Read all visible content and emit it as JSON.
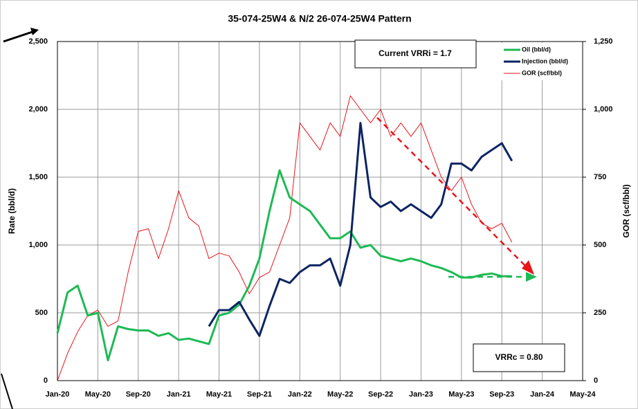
{
  "chart_data": {
    "type": "line",
    "title": "35-074-25W4 & N/2 26-074-25W4 Pattern",
    "y_label": "Rate (bbl/d)",
    "y2_label": "GOR (scf/bbl)",
    "annotations": [
      "Current VRRi = 1.7",
      "VRRc = 0.80"
    ],
    "x": [
      "2020-01",
      "2020-02",
      "2020-03",
      "2020-04",
      "2020-05",
      "2020-06",
      "2020-07",
      "2020-08",
      "2020-09",
      "2020-10",
      "2020-11",
      "2020-12",
      "2021-01",
      "2021-02",
      "2021-03",
      "2021-04",
      "2021-05",
      "2021-06",
      "2021-07",
      "2021-08",
      "2021-09",
      "2021-10",
      "2021-11",
      "2021-12",
      "2022-01",
      "2022-02",
      "2022-03",
      "2022-04",
      "2022-05",
      "2022-06",
      "2022-07",
      "2022-08",
      "2022-09",
      "2022-10",
      "2022-11",
      "2022-12",
      "2023-01",
      "2023-02",
      "2023-03",
      "2023-04",
      "2023-05",
      "2023-06",
      "2023-07",
      "2023-08",
      "2023-09",
      "2023-10"
    ],
    "xlim": [
      "2020-01",
      "2024-05"
    ],
    "xticks": [
      {
        "value": "2020-01",
        "label": "Jan-20"
      },
      {
        "value": "2020-05",
        "label": "May-20"
      },
      {
        "value": "2020-09",
        "label": "Sep-20"
      },
      {
        "value": "2021-01",
        "label": "Jan-21"
      },
      {
        "value": "2021-05",
        "label": "May-21"
      },
      {
        "value": "2021-09",
        "label": "Sep-21"
      },
      {
        "value": "2022-01",
        "label": "Jan-22"
      },
      {
        "value": "2022-05",
        "label": "May-22"
      },
      {
        "value": "2022-09",
        "label": "Sep-22"
      },
      {
        "value": "2023-01",
        "label": "Jan-23"
      },
      {
        "value": "2023-05",
        "label": "May-23"
      },
      {
        "value": "2023-09",
        "label": "Sep-23"
      },
      {
        "value": "2024-01",
        "label": "Jan-24"
      },
      {
        "value": "2024-05",
        "label": "May-24"
      }
    ],
    "ylim": [
      0,
      2500
    ],
    "yticks": [
      0,
      500,
      {
        "value": 1000,
        "label": "1,000"
      },
      {
        "value": 1500,
        "label": "1,500"
      },
      {
        "value": 2000,
        "label": "2,000"
      },
      {
        "value": 2500,
        "label": "2,500"
      }
    ],
    "y2lim": [
      0,
      1250
    ],
    "y2ticks": [
      0,
      250,
      500,
      750,
      {
        "value": 1000,
        "label": "1,000"
      },
      {
        "value": 1250,
        "label": "1,250"
      }
    ],
    "grid": true,
    "legend": "upper right",
    "series": [
      {
        "name": "Oil (bbl/d)",
        "color": "#1db954",
        "line_width": 3,
        "values": [
          350,
          650,
          700,
          480,
          500,
          150,
          400,
          380,
          370,
          370,
          330,
          350,
          300,
          310,
          290,
          270,
          480,
          500,
          560,
          700,
          900,
          1250,
          1550,
          1350,
          1300,
          1250,
          1150,
          1050,
          1050,
          1100,
          980,
          1000,
          920,
          900,
          880,
          900,
          880,
          850,
          830,
          800,
          760,
          760,
          780,
          790,
          770,
          770
        ]
      },
      {
        "name": "Injection (bbl/d)",
        "color": "#0d2463",
        "line_width": 3,
        "values": [
          null,
          null,
          null,
          null,
          null,
          null,
          null,
          null,
          null,
          null,
          null,
          null,
          null,
          null,
          null,
          400,
          520,
          520,
          580,
          450,
          330,
          550,
          750,
          720,
          800,
          850,
          850,
          900,
          700,
          1000,
          1900,
          1350,
          1280,
          1320,
          1250,
          1300,
          1250,
          1200,
          1300,
          1600,
          1600,
          1550,
          1650,
          1700,
          1750,
          1620
        ]
      },
      {
        "name": "GOR (scf/bbl)",
        "color": "#e8141a",
        "line_width": 1,
        "axis": "y2",
        "values": [
          0,
          100,
          180,
          240,
          260,
          200,
          220,
          400,
          550,
          560,
          450,
          560,
          700,
          600,
          570,
          450,
          470,
          460,
          400,
          320,
          380,
          400,
          500,
          600,
          950,
          900,
          850,
          950,
          900,
          1050,
          1000,
          950,
          1000,
          900,
          950,
          900,
          950,
          850,
          750,
          700,
          750,
          650,
          580,
          560,
          580,
          510
        ]
      }
    ]
  }
}
